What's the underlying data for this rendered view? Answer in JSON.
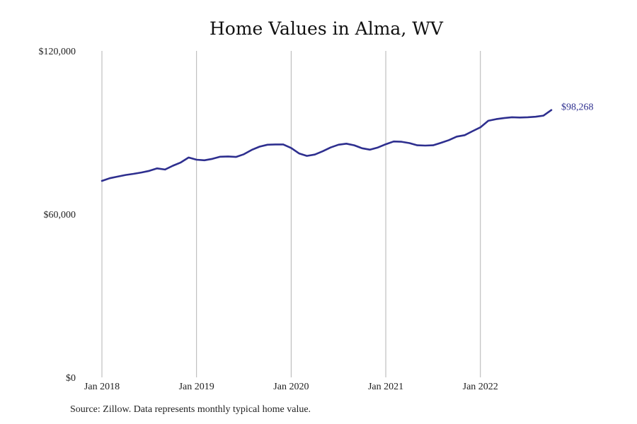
{
  "chart_data": {
    "type": "line",
    "title": "Home Values in Alma, WV",
    "xlabel": "",
    "ylabel": "",
    "ylim": [
      0,
      120000
    ],
    "y_ticks": [
      {
        "value": 0,
        "label": "$0"
      },
      {
        "value": 60000,
        "label": "$60,000"
      },
      {
        "value": 120000,
        "label": "$120,000"
      }
    ],
    "x_ticks": [
      {
        "value": "2018-01",
        "label": "Jan 2018"
      },
      {
        "value": "2019-01",
        "label": "Jan 2019"
      },
      {
        "value": "2020-01",
        "label": "Jan 2020"
      },
      {
        "value": "2021-01",
        "label": "Jan 2021"
      },
      {
        "value": "2022-01",
        "label": "Jan 2022"
      }
    ],
    "x_range": [
      "2018-01",
      "2022-10"
    ],
    "grid": "vertical",
    "line_color": "#2e2f8f",
    "series": [
      {
        "name": "",
        "x": [
          "2018-01",
          "2018-02",
          "2018-03",
          "2018-04",
          "2018-05",
          "2018-06",
          "2018-07",
          "2018-08",
          "2018-09",
          "2018-10",
          "2018-11",
          "2018-12",
          "2019-01",
          "2019-02",
          "2019-03",
          "2019-04",
          "2019-05",
          "2019-06",
          "2019-07",
          "2019-08",
          "2019-09",
          "2019-10",
          "2019-11",
          "2019-12",
          "2020-01",
          "2020-02",
          "2020-03",
          "2020-04",
          "2020-05",
          "2020-06",
          "2020-07",
          "2020-08",
          "2020-09",
          "2020-10",
          "2020-11",
          "2020-12",
          "2021-01",
          "2021-02",
          "2021-03",
          "2021-04",
          "2021-05",
          "2021-06",
          "2021-07",
          "2021-08",
          "2021-09",
          "2021-10",
          "2021-11",
          "2021-12",
          "2022-01",
          "2022-02",
          "2022-03",
          "2022-04",
          "2022-05",
          "2022-06",
          "2022-07",
          "2022-08",
          "2022-09",
          "2022-10"
        ],
        "values": [
          72200,
          73200,
          73800,
          74400,
          74800,
          75300,
          75900,
          76800,
          76400,
          77800,
          79000,
          80800,
          80000,
          79800,
          80300,
          81100,
          81200,
          81000,
          82000,
          83600,
          84800,
          85500,
          85600,
          85600,
          84300,
          82300,
          81400,
          81900,
          83100,
          84500,
          85500,
          85900,
          85300,
          84200,
          83700,
          84500,
          85700,
          86700,
          86600,
          86100,
          85300,
          85200,
          85300,
          86200,
          87200,
          88500,
          89000,
          90500,
          91900,
          94300,
          94900,
          95300,
          95600,
          95500,
          95600,
          95800,
          96200,
          98268
        ]
      }
    ],
    "annotations": [
      {
        "x": "2022-10",
        "value": 98268,
        "label": "$98,268"
      }
    ]
  },
  "footer": {
    "source": "Source: Zillow. Data represents monthly typical home value."
  }
}
